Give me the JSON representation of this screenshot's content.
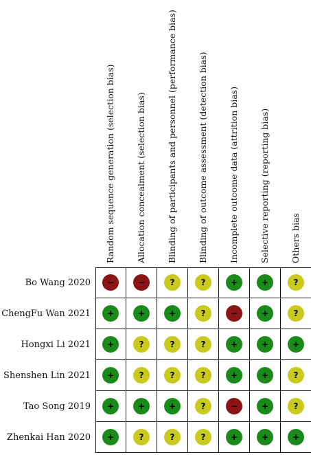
{
  "columns": [
    "Random sequence generation (selection bias)",
    "Allocation concealment (selection bias)",
    "Blinding of participants and personnel (performance bias)",
    "Blinding of outcome assessment (detection bias)",
    "Incomplete outcome data (attrition bias)",
    "Selective reporting (reporting bias)",
    "Others bias"
  ],
  "studies": [
    {
      "name": "Bo Wang 2020",
      "ratings": [
        "high",
        "high",
        "unclear",
        "unclear",
        "low",
        "low",
        "unclear"
      ]
    },
    {
      "name": "ChengFu Wan 2021",
      "ratings": [
        "low",
        "low",
        "low",
        "unclear",
        "high",
        "low",
        "unclear"
      ]
    },
    {
      "name": "Hongxi Li 2021",
      "ratings": [
        "low",
        "unclear",
        "unclear",
        "unclear",
        "low",
        "low",
        "low"
      ]
    },
    {
      "name": "Shenshen Lin 2021",
      "ratings": [
        "low",
        "unclear",
        "unclear",
        "unclear",
        "low",
        "low",
        "unclear"
      ]
    },
    {
      "name": "Tao Song 2019",
      "ratings": [
        "low",
        "low",
        "low",
        "unclear",
        "high",
        "low",
        "unclear"
      ]
    },
    {
      "name": "Zhenkai Han 2020",
      "ratings": [
        "low",
        "unclear",
        "unclear",
        "unclear",
        "low",
        "low",
        "low"
      ]
    }
  ],
  "symbols": {
    "low": "+",
    "unclear": "?",
    "high": "−"
  },
  "colors": {
    "low": "#1a8a1a",
    "unclear": "#c9c91e",
    "high": "#8b1414"
  },
  "icons": {
    "low": "plus-circle-icon",
    "unclear": "question-circle-icon",
    "high": "minus-circle-icon"
  }
}
